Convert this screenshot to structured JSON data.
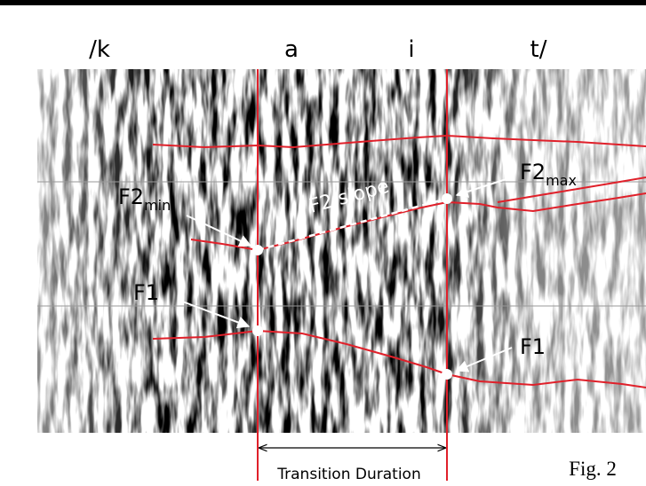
{
  "phonemes": [
    "/k",
    "a",
    "i",
    "t/"
  ],
  "labels": {
    "f2_min": {
      "main": "F2",
      "sub": "min"
    },
    "f1_left": "F1",
    "f2_max": {
      "main": "F2",
      "sub": "max"
    },
    "f1_right": "F1",
    "slope": "F2 slope"
  },
  "transition": "Transition Duration",
  "caption": "Fig. 2"
}
